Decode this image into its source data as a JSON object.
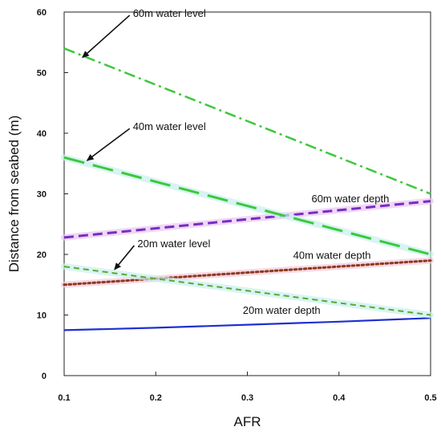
{
  "chart_data": {
    "type": "line",
    "title": "",
    "xlabel": "AFR",
    "ylabel": "Distance from seabed (m)",
    "xlim": [
      0.1,
      0.5
    ],
    "ylim": [
      0,
      60
    ],
    "xticks": [
      "0.1",
      "0.2",
      "0.3",
      "0.4",
      "0.5"
    ],
    "yticks": [
      "0",
      "10",
      "20",
      "30",
      "40",
      "50",
      "60"
    ],
    "grid": false,
    "series": [
      {
        "name": "20m water depth",
        "color": "#1f2fd1",
        "style": "solid",
        "width": 2.2,
        "x": [
          0.1,
          0.2,
          0.3,
          0.4,
          0.5
        ],
        "y": [
          7.5,
          7.9,
          8.4,
          8.9,
          9.5
        ]
      },
      {
        "name": "40m water depth",
        "color": "#8a3a1e",
        "style": "dotted",
        "width": 3,
        "halo": "#f4c8d8",
        "x": [
          0.1,
          0.2,
          0.3,
          0.4,
          0.5
        ],
        "y": [
          15.0,
          16.0,
          17.0,
          18.0,
          19.0
        ]
      },
      {
        "name": "60m water depth",
        "color": "#7a2cc2",
        "style": "dashed",
        "width": 3,
        "halo": "#e8c8f2",
        "x": [
          0.1,
          0.2,
          0.3,
          0.4,
          0.5
        ],
        "y": [
          22.8,
          24.3,
          25.8,
          27.3,
          28.8
        ]
      },
      {
        "name": "20m water level",
        "color": "#5aa832",
        "style": "short-dash",
        "width": 2,
        "halo": "#c8f0ec",
        "x": [
          0.1,
          0.2,
          0.3,
          0.4,
          0.5
        ],
        "y": [
          18.0,
          16.0,
          14.0,
          12.0,
          10.0
        ]
      },
      {
        "name": "40m water level",
        "color": "#3cc83c",
        "style": "long-dash",
        "width": 3,
        "halo": "#c8f0ec",
        "x": [
          0.1,
          0.2,
          0.3,
          0.4,
          0.5
        ],
        "y": [
          36.0,
          32.0,
          28.0,
          24.0,
          20.0
        ]
      },
      {
        "name": "60m water level",
        "color": "#3cc83c",
        "style": "dash-dot",
        "width": 2.5,
        "x": [
          0.1,
          0.2,
          0.3,
          0.4,
          0.5
        ],
        "y": [
          54.0,
          48.0,
          42.0,
          36.0,
          30.0
        ]
      }
    ],
    "annotations": [
      {
        "id": "label-60m-water-level",
        "text": "60m water level",
        "x": 0.175,
        "y": 59.2,
        "arrow_to": [
          0.12,
          52.5
        ]
      },
      {
        "id": "label-40m-water-level",
        "text": "40m water level",
        "x": 0.175,
        "y": 40.5,
        "arrow_to": [
          0.125,
          35.5
        ]
      },
      {
        "id": "label-20m-water-level",
        "text": "20m water level",
        "x": 0.18,
        "y": 21.2,
        "arrow_to": [
          0.155,
          17.5
        ]
      },
      {
        "id": "label-60m-water-depth",
        "text": "60m water depth",
        "x": 0.37,
        "y": 28.6
      },
      {
        "id": "label-40m-water-depth",
        "text": "40m water depth",
        "x": 0.35,
        "y": 19.3
      },
      {
        "id": "label-20m-water-depth",
        "text": "20m water depth",
        "x": 0.295,
        "y": 10.2
      }
    ]
  }
}
